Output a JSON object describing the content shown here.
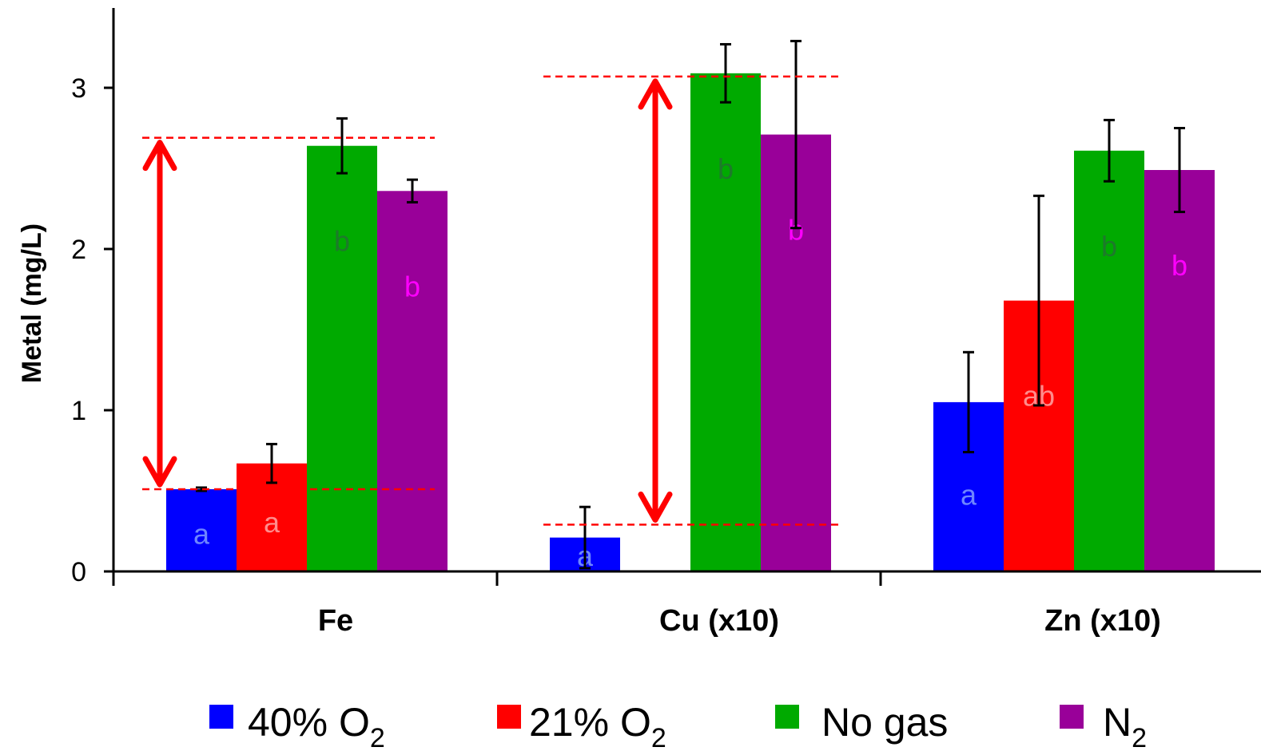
{
  "chart_data": {
    "type": "bar",
    "title": "",
    "xlabel": "",
    "ylabel": "Metal (mg/L)",
    "ylim": [
      0,
      3.5
    ],
    "yticks": [
      0,
      1,
      2,
      3
    ],
    "grid": false,
    "legend_position": "bottom",
    "categories": [
      "Fe",
      "Cu (x10)",
      "Zn (x10)"
    ],
    "series": [
      {
        "name": "40% O",
        "subscript": "2",
        "color": "#0000ff",
        "letter_color": "#6e86ff",
        "values": [
          0.51,
          0.21,
          1.05
        ],
        "errors": [
          0.01,
          0.19,
          0.31
        ],
        "letters": [
          "a",
          "a",
          "a"
        ]
      },
      {
        "name": "21% O",
        "subscript": "2",
        "color": "#ff0000",
        "letter_color": "#ff8c8c",
        "values": [
          0.67,
          null,
          1.68
        ],
        "errors": [
          0.12,
          null,
          0.65
        ],
        "letters": [
          "a",
          "",
          "ab"
        ]
      },
      {
        "name": "No gas",
        "subscript": "",
        "color": "#00aa00",
        "letter_color": "#1d7a2a",
        "values": [
          2.64,
          3.09,
          2.61
        ],
        "errors": [
          0.17,
          0.18,
          0.19
        ],
        "letters": [
          "b",
          "b",
          "b"
        ]
      },
      {
        "name": "N",
        "subscript": "2",
        "color": "#990099",
        "letter_color": "#ff00ff",
        "values": [
          2.36,
          2.71,
          2.49
        ],
        "errors": [
          0.07,
          0.58,
          0.26
        ],
        "letters": [
          "b",
          "b",
          "b"
        ]
      }
    ],
    "annotations": {
      "color": "#ff0000",
      "arrows": [
        {
          "category": "Fe",
          "from": 0.51,
          "to": 2.69
        },
        {
          "category": "Cu (x10)",
          "from": 0.29,
          "to": 3.07
        }
      ]
    }
  }
}
